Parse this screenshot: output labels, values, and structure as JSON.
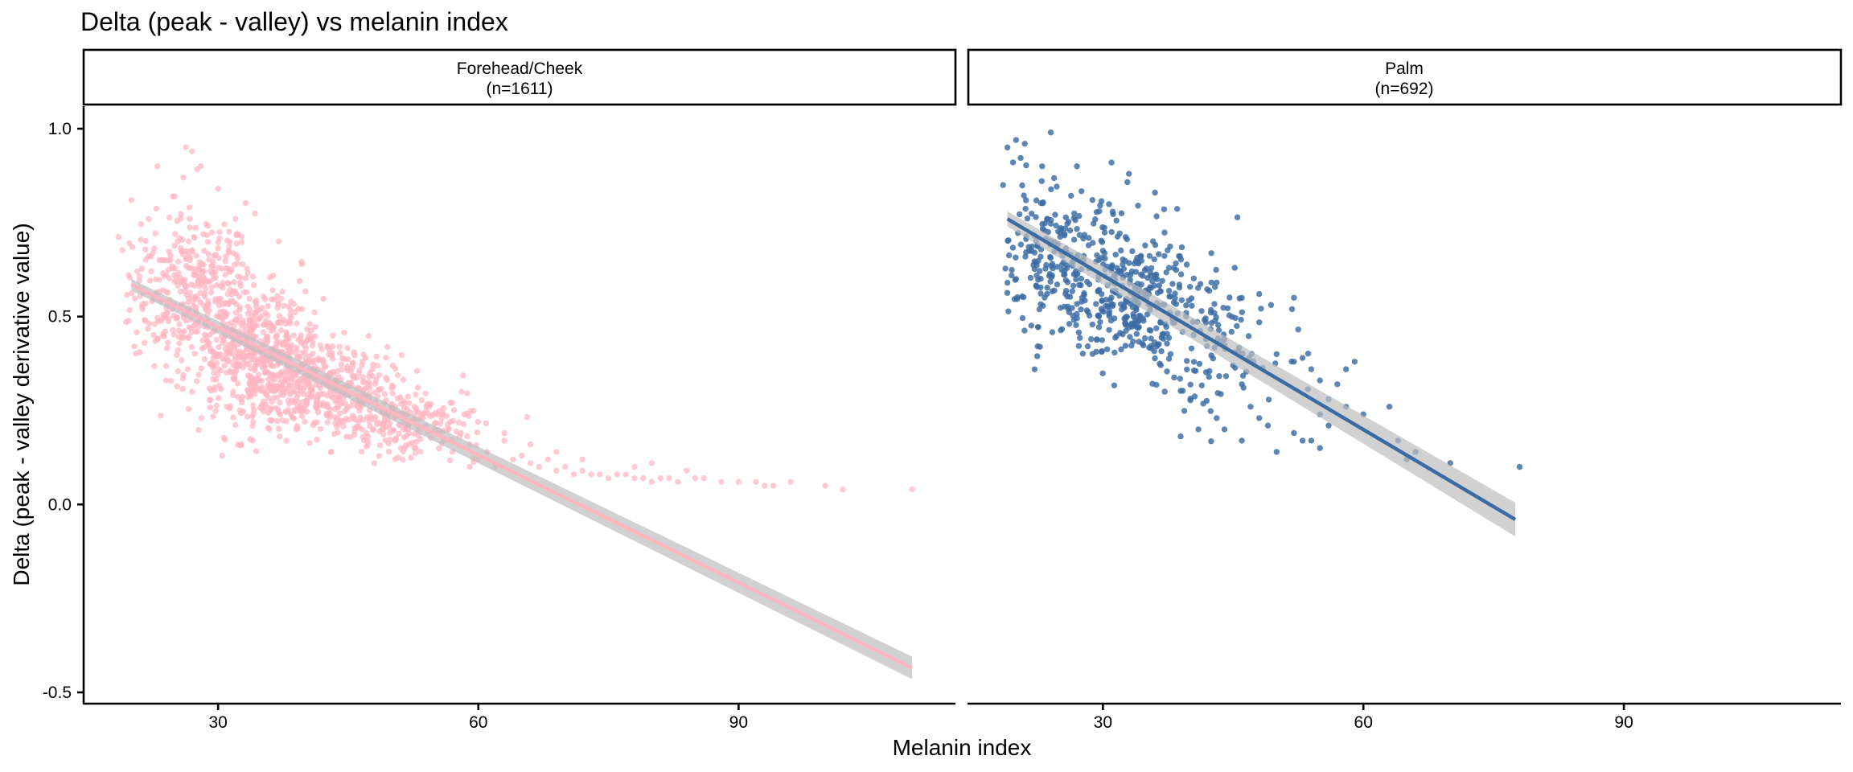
{
  "chart_data": {
    "type": "scatter",
    "title": "Delta (peak - valley) vs melanin index",
    "xlabel": "Melanin index",
    "ylabel": "Delta (peak - valley derivative value)",
    "xlim": [
      14.5,
      115
    ],
    "ylim": [
      -0.53,
      1.06
    ],
    "x_ticks": [
      30,
      60,
      90
    ],
    "x_tick_labels": [
      "30",
      "60",
      "90"
    ],
    "y_ticks": [
      -0.5,
      0.0,
      0.5,
      1.0
    ],
    "y_tick_labels": [
      "-0.5",
      "0.0",
      "0.5",
      "1.0"
    ],
    "grid": false,
    "legend": "none",
    "facets": [
      {
        "label_line1": "Forehead/Cheek",
        "label_line2": "(n=1611)",
        "n": 1611,
        "color": "#FFB6C1",
        "trend": {
          "x_start": 20,
          "y_start": 0.585,
          "x_end": 110,
          "y_end": -0.435,
          "ci_start": 0.015,
          "ci_end": 0.03
        },
        "clusters": [
          {
            "n": 380,
            "x_mean": 27,
            "x_sd": 3.5,
            "y_mean": 0.57,
            "y_sd": 0.1
          },
          {
            "n": 520,
            "x_mean": 35,
            "x_sd": 4,
            "y_mean": 0.4,
            "y_sd": 0.08
          },
          {
            "n": 400,
            "x_mean": 42,
            "x_sd": 5,
            "y_mean": 0.3,
            "y_sd": 0.06
          },
          {
            "n": 180,
            "x_mean": 52,
            "x_sd": 4,
            "y_mean": 0.21,
            "y_sd": 0.04
          }
        ],
        "points": [
          [
            20,
            0.81
          ],
          [
            22,
            0.76
          ],
          [
            23,
            0.9
          ],
          [
            26,
            0.87
          ],
          [
            27,
            0.94
          ],
          [
            28,
            0.9
          ],
          [
            25,
            0.82
          ],
          [
            30,
            0.84
          ],
          [
            32,
            0.76
          ],
          [
            37,
            0.7
          ],
          [
            23,
            0.44
          ],
          [
            24,
            0.33
          ],
          [
            27,
            0.3
          ],
          [
            31,
            0.26
          ],
          [
            34,
            0.17
          ],
          [
            39,
            0.2
          ],
          [
            40,
            0.22
          ],
          [
            43,
            0.14
          ],
          [
            48,
            0.11
          ],
          [
            47,
            0.39
          ],
          [
            50,
            0.31
          ],
          [
            52,
            0.27
          ],
          [
            44,
            0.42
          ],
          [
            55,
            0.2
          ],
          [
            56,
            0.17
          ],
          [
            57,
            0.14
          ],
          [
            58,
            0.19
          ],
          [
            59,
            0.16
          ],
          [
            60,
            0.12
          ],
          [
            61,
            0.14
          ],
          [
            62,
            0.1
          ],
          [
            63,
            0.19
          ],
          [
            64,
            0.12
          ],
          [
            65,
            0.13
          ],
          [
            66,
            0.11
          ],
          [
            67,
            0.1
          ],
          [
            68,
            0.12
          ],
          [
            69,
            0.09
          ],
          [
            70,
            0.1
          ],
          [
            71,
            0.08
          ],
          [
            72,
            0.09
          ],
          [
            73,
            0.08
          ],
          [
            74,
            0.08
          ],
          [
            75,
            0.07
          ],
          [
            76,
            0.08
          ],
          [
            77,
            0.08
          ],
          [
            78,
            0.07
          ],
          [
            79,
            0.07
          ],
          [
            80,
            0.06
          ],
          [
            81,
            0.07
          ],
          [
            82,
            0.07
          ],
          [
            83,
            0.06
          ],
          [
            84,
            0.09
          ],
          [
            85,
            0.07
          ],
          [
            86,
            0.07
          ],
          [
            88,
            0.06
          ],
          [
            90,
            0.06
          ],
          [
            92,
            0.06
          ],
          [
            93,
            0.05
          ],
          [
            94,
            0.05
          ],
          [
            96,
            0.06
          ],
          [
            100,
            0.05
          ],
          [
            102,
            0.04
          ],
          [
            110,
            0.04
          ],
          [
            66,
            0.16
          ],
          [
            69,
            0.14
          ],
          [
            72,
            0.12
          ],
          [
            78,
            0.1
          ],
          [
            80,
            0.11
          ],
          [
            63,
            0.17
          ],
          [
            59,
            0.1
          ]
        ]
      },
      {
        "label_line1": "Palm",
        "label_line2": "(n=692)",
        "n": 692,
        "color": "#3A6BA3",
        "trend": {
          "x_start": 19,
          "y_start": 0.76,
          "x_end": 77.5,
          "y_end": -0.04,
          "ci_start": 0.02,
          "ci_end": 0.045
        },
        "clusters": [
          {
            "n": 200,
            "x_mean": 24,
            "x_sd": 3.5,
            "y_mean": 0.66,
            "y_sd": 0.1
          },
          {
            "n": 320,
            "x_mean": 33,
            "x_sd": 4,
            "y_mean": 0.56,
            "y_sd": 0.09
          },
          {
            "n": 120,
            "x_mean": 42,
            "x_sd": 4,
            "y_mean": 0.42,
            "y_sd": 0.09
          }
        ],
        "points": [
          [
            19,
            0.95
          ],
          [
            20,
            0.97
          ],
          [
            21,
            0.96
          ],
          [
            24,
            0.99
          ],
          [
            23,
            0.9
          ],
          [
            27,
            0.9
          ],
          [
            31,
            0.91
          ],
          [
            33,
            0.88
          ],
          [
            36,
            0.83
          ],
          [
            18.5,
            0.85
          ],
          [
            19,
            0.59
          ],
          [
            20,
            0.6
          ],
          [
            45,
            0.37
          ],
          [
            46,
            0.32
          ],
          [
            47,
            0.26
          ],
          [
            48,
            0.23
          ],
          [
            49,
            0.21
          ],
          [
            50,
            0.14
          ],
          [
            52,
            0.19
          ],
          [
            53,
            0.17
          ],
          [
            54,
            0.17
          ],
          [
            55,
            0.15
          ],
          [
            56,
            0.21
          ],
          [
            52,
            0.38
          ],
          [
            53,
            0.39
          ],
          [
            54,
            0.36
          ],
          [
            55,
            0.33
          ],
          [
            57,
            0.32
          ],
          [
            58,
            0.36
          ],
          [
            59,
            0.38
          ],
          [
            48,
            0.56
          ],
          [
            52,
            0.55
          ],
          [
            50,
            0.4
          ],
          [
            56,
            0.28
          ],
          [
            60,
            0.24
          ],
          [
            63,
            0.26
          ],
          [
            64,
            0.17
          ],
          [
            65,
            0.12
          ],
          [
            66,
            0.14
          ],
          [
            70,
            0.11
          ],
          [
            78,
            0.1
          ],
          [
            44,
            0.2
          ],
          [
            46,
            0.17
          ],
          [
            41,
            0.2
          ],
          [
            55,
            0.24
          ],
          [
            58,
            0.26
          ]
        ]
      }
    ]
  }
}
